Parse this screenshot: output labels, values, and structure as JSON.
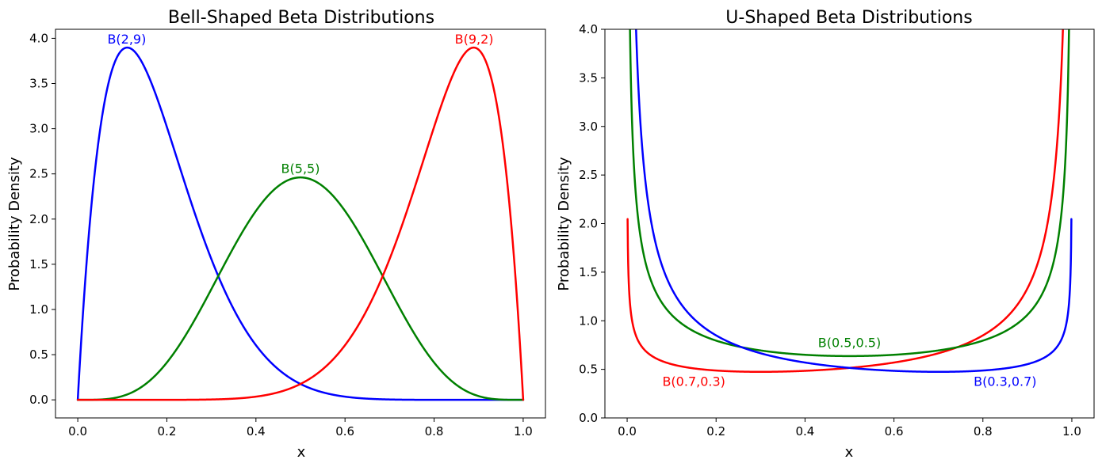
{
  "chart_data": [
    {
      "type": "line",
      "title": "Bell-Shaped Beta Distributions",
      "xlabel": "x",
      "ylabel": "Probability Density",
      "xlim": [
        -0.05,
        1.05
      ],
      "ylim": [
        -0.2,
        4.1
      ],
      "xticks": [
        "0.0",
        "0.2",
        "0.4",
        "0.6",
        "0.8",
        "1.0"
      ],
      "yticks": [
        "0.0",
        "0.5",
        "1.0",
        "1.5",
        "2.0",
        "2.5",
        "3.0",
        "3.5",
        "4.0"
      ],
      "grid": false,
      "series": [
        {
          "name": "B(2,9)",
          "alpha": 2,
          "beta": 9,
          "color": "#0000ff",
          "x_range": [
            0.0,
            1.0
          ]
        },
        {
          "name": "B(5,5)",
          "alpha": 5,
          "beta": 5,
          "color": "#008000",
          "x_range": [
            0.0,
            1.0
          ]
        },
        {
          "name": "B(9,2)",
          "alpha": 9,
          "beta": 2,
          "color": "#ff0000",
          "x_range": [
            0.0,
            1.0
          ]
        }
      ],
      "annotations": [
        {
          "text": "B(2,9)",
          "x": 0.11,
          "y": 3.89,
          "color": "#0000ff"
        },
        {
          "text": "B(5,5)",
          "x": 0.5,
          "y": 2.46,
          "color": "#008000"
        },
        {
          "text": "B(9,2)",
          "x": 0.89,
          "y": 3.89,
          "color": "#ff0000"
        }
      ]
    },
    {
      "type": "line",
      "title": "U-Shaped Beta Distributions",
      "xlabel": "x",
      "ylabel": "Probability Density",
      "xlim": [
        -0.05,
        1.05
      ],
      "ylim": [
        0.0,
        4.0
      ],
      "xticks": [
        "0.0",
        "0.2",
        "0.4",
        "0.6",
        "0.8",
        "1.0"
      ],
      "yticks": [
        "0.0",
        "0.5",
        "1.0",
        "1.5",
        "2.0",
        "2.5",
        "3.0",
        "3.5",
        "4.0"
      ],
      "grid": false,
      "series": [
        {
          "name": "B(0.7,0.3)",
          "alpha": 0.7,
          "beta": 0.3,
          "color": "#ff0000",
          "x_range": [
            0.001,
            0.999
          ]
        },
        {
          "name": "B(0.5,0.5)",
          "alpha": 0.5,
          "beta": 0.5,
          "color": "#008000",
          "x_range": [
            0.001,
            0.999
          ]
        },
        {
          "name": "B(0.3,0.7)",
          "alpha": 0.3,
          "beta": 0.7,
          "color": "#0000ff",
          "x_range": [
            0.001,
            0.999
          ]
        }
      ],
      "annotations": [
        {
          "text": "B(0.5,0.5)",
          "x": 0.5,
          "y": 0.68,
          "color": "#008000"
        },
        {
          "text": "B(0.7,0.3)",
          "x": 0.15,
          "y": 0.28,
          "color": "#ff0000"
        },
        {
          "text": "B(0.3,0.7)",
          "x": 0.85,
          "y": 0.28,
          "color": "#0000ff"
        }
      ]
    }
  ]
}
